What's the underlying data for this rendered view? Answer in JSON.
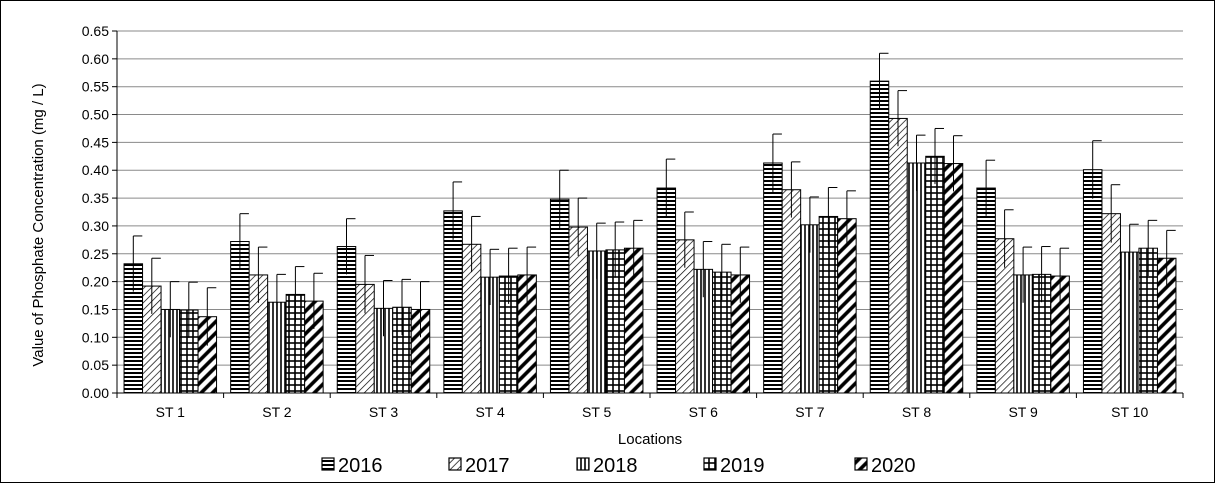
{
  "chart_data": {
    "type": "bar",
    "title": "",
    "xlabel": "Locations",
    "ylabel": "Value of Phosphate Concentration (mg / L)",
    "ylim": [
      0,
      0.65
    ],
    "yticks": [
      "0.00",
      "0.05",
      "0.10",
      "0.15",
      "0.20",
      "0.25",
      "0.30",
      "0.35",
      "0.40",
      "0.45",
      "0.50",
      "0.55",
      "0.60",
      "0.65"
    ],
    "grid": "horizontal",
    "legend_position": "bottom",
    "error_bars": true,
    "categories": [
      "ST 1",
      "ST 2",
      "ST 3",
      "ST 4",
      "ST 5",
      "ST 6",
      "ST 7",
      "ST 8",
      "ST 9",
      "ST 10"
    ],
    "series": [
      {
        "name": "2016",
        "pattern": "horizontal-lines",
        "values": [
          0.232,
          0.272,
          0.263,
          0.327,
          0.348,
          0.368,
          0.413,
          0.56,
          0.368,
          0.401
        ],
        "errors": [
          0.05,
          0.05,
          0.05,
          0.052,
          0.052,
          0.052,
          0.052,
          0.05,
          0.05,
          0.052
        ]
      },
      {
        "name": "2017",
        "pattern": "diagonal-lines",
        "values": [
          0.192,
          0.212,
          0.195,
          0.267,
          0.298,
          0.275,
          0.365,
          0.493,
          0.277,
          0.322
        ],
        "errors": [
          0.05,
          0.05,
          0.052,
          0.05,
          0.052,
          0.05,
          0.05,
          0.05,
          0.052,
          0.052
        ]
      },
      {
        "name": "2018",
        "pattern": "vertical-lines",
        "values": [
          0.15,
          0.163,
          0.152,
          0.208,
          0.255,
          0.222,
          0.302,
          0.413,
          0.212,
          0.253
        ],
        "errors": [
          0.05,
          0.05,
          0.05,
          0.05,
          0.05,
          0.05,
          0.05,
          0.05,
          0.05,
          0.05
        ]
      },
      {
        "name": "2019",
        "pattern": "grid",
        "values": [
          0.149,
          0.177,
          0.154,
          0.21,
          0.257,
          0.217,
          0.317,
          0.425,
          0.213,
          0.26
        ],
        "errors": [
          0.05,
          0.05,
          0.05,
          0.05,
          0.05,
          0.05,
          0.052,
          0.05,
          0.05,
          0.05
        ]
      },
      {
        "name": "2020",
        "pattern": "bold-diagonal",
        "values": [
          0.137,
          0.165,
          0.15,
          0.212,
          0.26,
          0.212,
          0.313,
          0.412,
          0.21,
          0.242
        ],
        "errors": [
          0.052,
          0.05,
          0.05,
          0.05,
          0.05,
          0.05,
          0.05,
          0.05,
          0.05,
          0.05
        ]
      }
    ]
  }
}
